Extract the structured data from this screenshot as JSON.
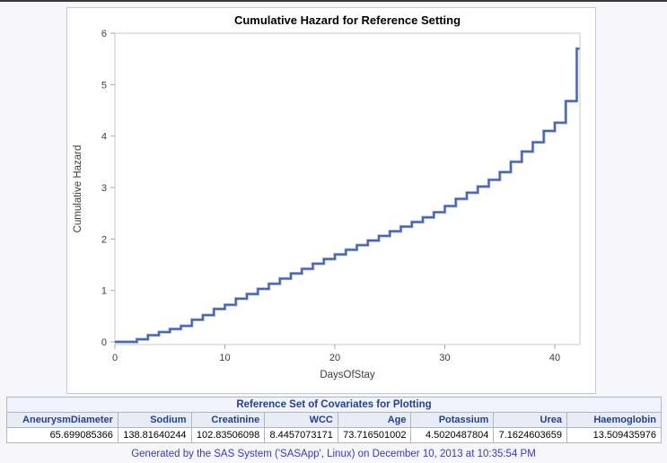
{
  "page": {
    "background": "#f6f6fa",
    "top_rule_color": "#3a3a3a",
    "footer_text": "Generated by the SAS System ('SASApp', Linux) on December 10, 2013 at 10:35:54 PM",
    "footer_color": "#3a3aaa"
  },
  "chart_data": {
    "type": "line",
    "subtype": "step",
    "title": "Cumulative Hazard for Reference Setting",
    "xlabel": "DaysOfStay",
    "ylabel": "Cumulative Hazard",
    "xlim": [
      0,
      42.5
    ],
    "ylim": [
      0,
      6
    ],
    "xticks": [
      0,
      10,
      20,
      30,
      40
    ],
    "yticks": [
      0,
      1,
      2,
      3,
      4,
      5,
      6
    ],
    "grid": false,
    "legend": false,
    "line_color": "#415FAA",
    "line_halo_color": "#9FB0D8",
    "frame_color": "#c8c8c8",
    "tick_color": "#a8a8a8",
    "text_color": "#3d3d3d",
    "series": [
      {
        "name": "Cumulative Hazard",
        "x_name": "DaysOfStay",
        "steps": [
          [
            0,
            0
          ],
          [
            2,
            0.05
          ],
          [
            3,
            0.13
          ],
          [
            4,
            0.19
          ],
          [
            5,
            0.25
          ],
          [
            6,
            0.31
          ],
          [
            7,
            0.43
          ],
          [
            8,
            0.52
          ],
          [
            9,
            0.64
          ],
          [
            10,
            0.72
          ],
          [
            11,
            0.84
          ],
          [
            12,
            0.93
          ],
          [
            13,
            1.03
          ],
          [
            14,
            1.13
          ],
          [
            15,
            1.23
          ],
          [
            16,
            1.33
          ],
          [
            17,
            1.42
          ],
          [
            18,
            1.52
          ],
          [
            19,
            1.61
          ],
          [
            20,
            1.7
          ],
          [
            21,
            1.79
          ],
          [
            22,
            1.88
          ],
          [
            23,
            1.97
          ],
          [
            24,
            2.06
          ],
          [
            25,
            2.15
          ],
          [
            26,
            2.24
          ],
          [
            27,
            2.33
          ],
          [
            28,
            2.42
          ],
          [
            29,
            2.52
          ],
          [
            30,
            2.64
          ],
          [
            31,
            2.78
          ],
          [
            32,
            2.9
          ],
          [
            33,
            3.02
          ],
          [
            34,
            3.15
          ],
          [
            35,
            3.3
          ],
          [
            36,
            3.5
          ],
          [
            37,
            3.7
          ],
          [
            38,
            3.88
          ],
          [
            39,
            4.1
          ],
          [
            40,
            4.26
          ],
          [
            41,
            4.68
          ],
          [
            42,
            5.7
          ]
        ]
      }
    ]
  },
  "table": {
    "title": "Reference Set of Covariates for Plotting",
    "columns": [
      "AneurysmDiameter",
      "Sodium",
      "Creatinine",
      "WCC",
      "Age",
      "Potassium",
      "Urea",
      "Haemoglobin"
    ],
    "values": [
      "65.699085366",
      "138.81640244",
      "102.83506098",
      "8.4457073171",
      "73.716501002",
      "4.5020487804",
      "7.1624603659",
      "13.509435976"
    ],
    "title_bg": "#f0f3f9",
    "header_bg": "#e7ecf5",
    "header_text_color": "#26408e",
    "border_color": "#aeb6c2",
    "outer_border_color": "#9fa8b2"
  }
}
